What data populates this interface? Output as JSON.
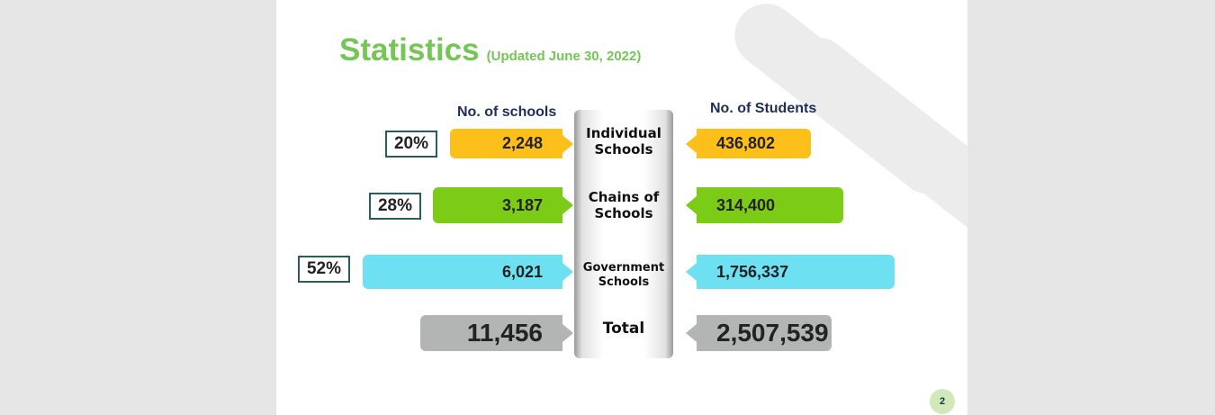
{
  "title": {
    "main": "Statistics",
    "sub": "(Updated  June 30, 2022)"
  },
  "headers": {
    "schools": "No. of schools",
    "students": "No. of Students"
  },
  "page_number": "2",
  "colors": {
    "individual": "#fdbf19",
    "chains": "#7ccb16",
    "government": "#6de1f2",
    "total": "#b3b5b5",
    "title": "#74c655"
  },
  "chart_data": {
    "type": "bar",
    "categories": [
      "Individual Schools",
      "Chains of Schools",
      "Government Schools",
      "Total"
    ],
    "series": [
      {
        "name": "No. of schools",
        "values": [
          2248,
          3187,
          6021,
          11456
        ],
        "labels": [
          "2,248",
          "3,187",
          "6,021",
          "11,456"
        ],
        "percent_labels": [
          "20%",
          "28%",
          "52%"
        ]
      },
      {
        "name": "No. of Students",
        "values": [
          436802,
          314400,
          1756337,
          2507539
        ],
        "labels": [
          "436,802",
          "314,400",
          "1,756,337",
          "2,507,539"
        ]
      }
    ],
    "category_lines": [
      [
        "Individual",
        "Schools"
      ],
      [
        "Chains of",
        "Schools"
      ],
      [
        "Government",
        "Schools"
      ],
      [
        "Total"
      ]
    ]
  }
}
